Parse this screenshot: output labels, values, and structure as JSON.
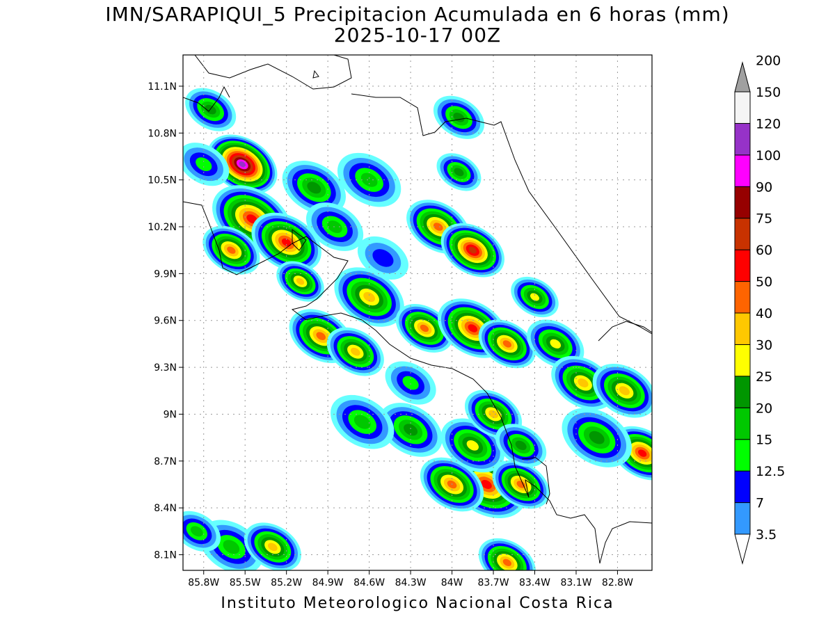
{
  "title": "IMN/SARAPIQUI_5 Precipitacion Acumulada en 6 horas (mm)",
  "subtitle": "2025-10-17 00Z",
  "footer": "Instituto Meteorologico Nacional Costa Rica",
  "map": {
    "lon_range": [
      -85.95,
      -82.55
    ],
    "lat_range": [
      8.0,
      11.3
    ],
    "lat_ticks": [
      {
        "value": 11.1,
        "label": "11.1N"
      },
      {
        "value": 10.8,
        "label": "10.8N"
      },
      {
        "value": 10.5,
        "label": "10.5N"
      },
      {
        "value": 10.2,
        "label": "10.2N"
      },
      {
        "value": 9.9,
        "label": "9.9N"
      },
      {
        "value": 9.6,
        "label": "9.6N"
      },
      {
        "value": 9.3,
        "label": "9.3N"
      },
      {
        "value": 9.0,
        "label": "9N"
      },
      {
        "value": 8.7,
        "label": "8.7N"
      },
      {
        "value": 8.4,
        "label": "8.4N"
      },
      {
        "value": 8.1,
        "label": "8.1N"
      }
    ],
    "lon_ticks": [
      {
        "value": -85.8,
        "label": "85.8W"
      },
      {
        "value": -85.5,
        "label": "85.5W"
      },
      {
        "value": -85.2,
        "label": "85.2W"
      },
      {
        "value": -84.9,
        "label": "84.9W"
      },
      {
        "value": -84.6,
        "label": "84.6W"
      },
      {
        "value": -84.3,
        "label": "84.3W"
      },
      {
        "value": -84.0,
        "label": "84W"
      },
      {
        "value": -83.7,
        "label": "83.7W"
      },
      {
        "value": -83.4,
        "label": "83.4W"
      },
      {
        "value": -83.1,
        "label": "83.1W"
      },
      {
        "value": -82.8,
        "label": "82.8W"
      }
    ],
    "grid": true
  },
  "colorbar": {
    "levels": [
      {
        "label": "3.5",
        "color": "#66ffff"
      },
      {
        "label": "7",
        "color": "#3399ff"
      },
      {
        "label": "12.5",
        "color": "#0000ff"
      },
      {
        "label": "15",
        "color": "#00ff00"
      },
      {
        "label": "20",
        "color": "#00c800"
      },
      {
        "label": "25",
        "color": "#009600"
      },
      {
        "label": "30",
        "color": "#ffff00"
      },
      {
        "label": "40",
        "color": "#ffc800"
      },
      {
        "label": "50",
        "color": "#ff6400"
      },
      {
        "label": "60",
        "color": "#ff0000"
      },
      {
        "label": "75",
        "color": "#c83200"
      },
      {
        "label": "90",
        "color": "#960000"
      },
      {
        "label": "100",
        "color": "#ff00ff"
      },
      {
        "label": "120",
        "color": "#9632c8"
      },
      {
        "label": "150",
        "color": "#f5f5f5"
      },
      {
        "label": "200",
        "color": "#a0a0a0"
      }
    ]
  },
  "rain_cells": [
    {
      "lon": -85.75,
      "lat": 10.95,
      "level": 5,
      "r": 0.16
    },
    {
      "lon": -85.52,
      "lat": 10.6,
      "level": 13,
      "r": 0.22
    },
    {
      "lon": -85.45,
      "lat": 10.25,
      "level": 9,
      "r": 0.25
    },
    {
      "lon": -85.2,
      "lat": 10.1,
      "level": 9,
      "r": 0.22
    },
    {
      "lon": -85.6,
      "lat": 10.05,
      "level": 8,
      "r": 0.18
    },
    {
      "lon": -85.1,
      "lat": 9.85,
      "level": 7,
      "r": 0.15
    },
    {
      "lon": -85.0,
      "lat": 10.45,
      "level": 5,
      "r": 0.2
    },
    {
      "lon": -84.6,
      "lat": 10.5,
      "level": 4,
      "r": 0.2
    },
    {
      "lon": -84.85,
      "lat": 10.2,
      "level": 4,
      "r": 0.18
    },
    {
      "lon": -84.1,
      "lat": 10.2,
      "level": 8,
      "r": 0.2
    },
    {
      "lon": -83.85,
      "lat": 10.05,
      "level": 10,
      "r": 0.2
    },
    {
      "lon": -83.95,
      "lat": 10.55,
      "level": 5,
      "r": 0.14
    },
    {
      "lon": -83.95,
      "lat": 10.9,
      "level": 5,
      "r": 0.16
    },
    {
      "lon": -84.6,
      "lat": 9.75,
      "level": 7,
      "r": 0.22
    },
    {
      "lon": -84.95,
      "lat": 9.5,
      "level": 8,
      "r": 0.2
    },
    {
      "lon": -84.7,
      "lat": 9.4,
      "level": 7,
      "r": 0.18
    },
    {
      "lon": -84.2,
      "lat": 9.55,
      "level": 8,
      "r": 0.18
    },
    {
      "lon": -83.85,
      "lat": 9.55,
      "level": 9,
      "r": 0.22
    },
    {
      "lon": -83.6,
      "lat": 9.45,
      "level": 8,
      "r": 0.18
    },
    {
      "lon": -83.25,
      "lat": 9.45,
      "level": 6,
      "r": 0.18
    },
    {
      "lon": -83.05,
      "lat": 9.2,
      "level": 7,
      "r": 0.2
    },
    {
      "lon": -82.75,
      "lat": 9.15,
      "level": 7,
      "r": 0.2
    },
    {
      "lon": -82.62,
      "lat": 8.75,
      "level": 9,
      "r": 0.2
    },
    {
      "lon": -82.95,
      "lat": 8.85,
      "level": 5,
      "r": 0.22
    },
    {
      "lon": -83.75,
      "lat": 8.55,
      "level": 9,
      "r": 0.25
    },
    {
      "lon": -84.0,
      "lat": 8.55,
      "level": 8,
      "r": 0.2
    },
    {
      "lon": -83.5,
      "lat": 8.55,
      "level": 8,
      "r": 0.18
    },
    {
      "lon": -83.85,
      "lat": 8.8,
      "level": 6,
      "r": 0.2
    },
    {
      "lon": -84.3,
      "lat": 8.9,
      "level": 5,
      "r": 0.2
    },
    {
      "lon": -84.65,
      "lat": 8.95,
      "level": 4,
      "r": 0.2
    },
    {
      "lon": -83.7,
      "lat": 9.0,
      "level": 7,
      "r": 0.18
    },
    {
      "lon": -83.5,
      "lat": 8.8,
      "level": 5,
      "r": 0.16
    },
    {
      "lon": -85.6,
      "lat": 8.15,
      "level": 4,
      "r": 0.2
    },
    {
      "lon": -85.3,
      "lat": 8.15,
      "level": 7,
      "r": 0.18
    },
    {
      "lon": -85.85,
      "lat": 8.25,
      "level": 4,
      "r": 0.15
    },
    {
      "lon": -83.6,
      "lat": 8.05,
      "level": 8,
      "r": 0.18
    },
    {
      "lon": -84.3,
      "lat": 9.2,
      "level": 3,
      "r": 0.16
    },
    {
      "lon": -85.8,
      "lat": 10.6,
      "level": 3,
      "r": 0.16
    },
    {
      "lon": -84.5,
      "lat": 10.0,
      "level": 2,
      "r": 0.16
    },
    {
      "lon": -83.4,
      "lat": 9.75,
      "level": 6,
      "r": 0.15
    }
  ]
}
